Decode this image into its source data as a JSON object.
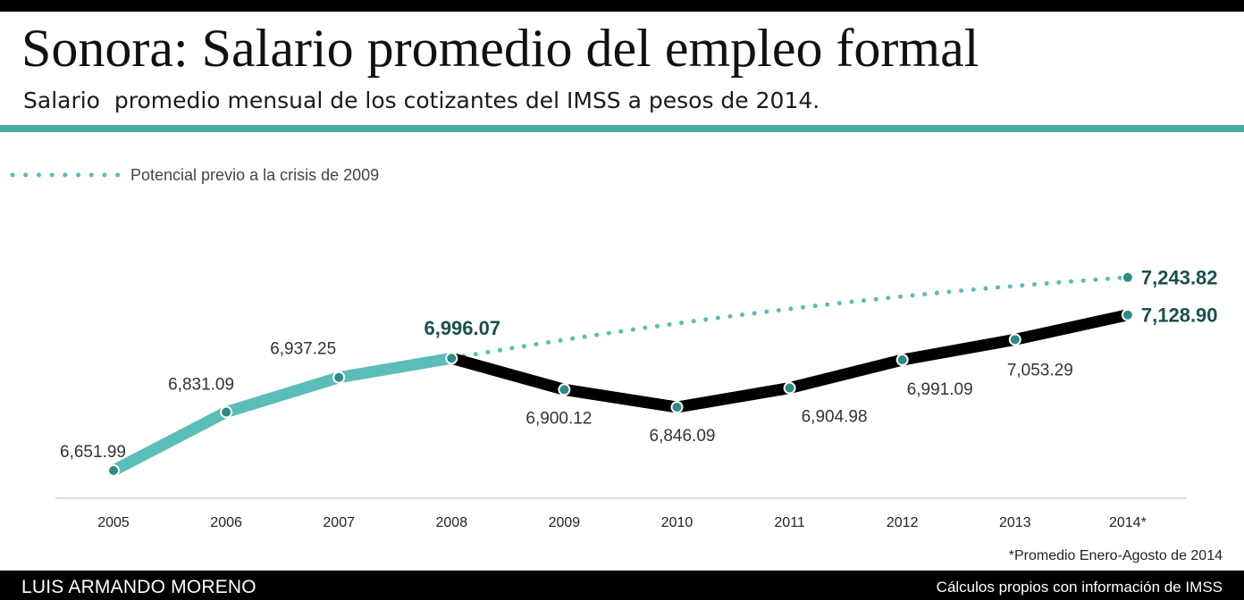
{
  "header": {
    "title": "Sonora: Salario promedio del empleo formal",
    "subtitle": "Salario  promedio mensual de los cotizantes del IMSS a pesos de 2014."
  },
  "footer": {
    "note": "*Promedio Enero-Agosto de 2014",
    "author": "LUIS ARMANDO MORENO",
    "source": "Cálculos propios con información de IMSS"
  },
  "colors": {
    "teal": "#5bbdb7",
    "teal_dark": "#1b4f4c",
    "black": "#000000",
    "marker": "#2e8b85"
  },
  "chart_data": {
    "type": "line",
    "title": "Sonora: Salario promedio del empleo formal",
    "subtitle": "Salario  promedio mensual de los cotizantes del IMSS a pesos de 2014.",
    "categories": [
      "2005",
      "2006",
      "2007",
      "2008",
      "2009",
      "2010",
      "2011",
      "2012",
      "2013",
      "2014*"
    ],
    "series": [
      {
        "name": "",
        "style": "solid",
        "values": [
          6651.99,
          6831.09,
          6937.25,
          6996.07,
          6900.12,
          6846.09,
          6904.98,
          6991.09,
          7053.29,
          7128.9
        ],
        "labels": [
          "6,651.99",
          "6,831.09",
          "6,937.25",
          "6,996.07",
          "6,900.12",
          "6,846.09",
          "6,904.98",
          "6,991.09",
          "7,053.29",
          "7,128.90"
        ],
        "segment_colors": "teal through 2008, black from 2008 onward"
      },
      {
        "name": "Potencial previo a la crisis de 2009",
        "style": "dotted",
        "start_index": 3,
        "end_index": 9,
        "start_value": 6996.07,
        "end_value": 7243.82,
        "end_label": "7,243.82"
      }
    ],
    "emphasized_labels": [
      "6,996.07",
      "7,128.90",
      "7,243.82"
    ],
    "legend": "top-left",
    "grid": false,
    "xlabel": "",
    "ylabel": "",
    "ylim": [
      6620,
      7260
    ]
  }
}
